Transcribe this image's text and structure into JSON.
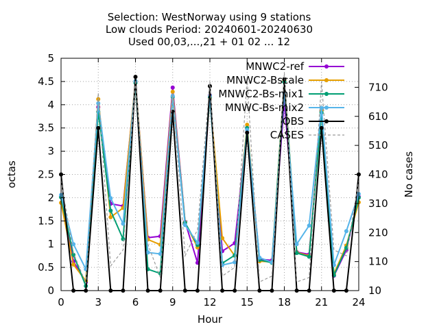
{
  "chart_data": {
    "type": "line",
    "title_lines": [
      "Selection: WestNorway using     9 stations",
      "Low clouds   Period: 20240601-20240630",
      "Used 00,03,...,21 + 01 02 ... 12"
    ],
    "xlabel": "Hour",
    "ylabel": "octas",
    "y2label": "No cases",
    "xlim": [
      0,
      24
    ],
    "ylim": [
      0,
      5
    ],
    "y2lim": [
      10,
      810
    ],
    "xticks": [
      0,
      3,
      6,
      9,
      12,
      15,
      18,
      21,
      24
    ],
    "yticks": [
      0,
      0.5,
      1,
      1.5,
      2,
      2.5,
      3,
      3.5,
      4,
      4.5,
      5
    ],
    "y2ticks": [
      10,
      110,
      210,
      310,
      410,
      510,
      610,
      710
    ],
    "grid": true,
    "legend_position": "top-right",
    "x": [
      0,
      1,
      2,
      3,
      4,
      5,
      6,
      7,
      8,
      9,
      10,
      11,
      12,
      13,
      14,
      15,
      16,
      17,
      18,
      19,
      20,
      21,
      22,
      23,
      24
    ],
    "series": [
      {
        "name": "MNWC2-ref",
        "color": "#9400d3",
        "marker": "circle",
        "values": [
          2.02,
          0.63,
          0.18,
          3.95,
          1.87,
          1.82,
          4.49,
          1.14,
          1.17,
          4.37,
          1.48,
          0.6,
          4.2,
          0.85,
          1.02,
          3.5,
          0.68,
          0.65,
          4.07,
          0.83,
          0.78,
          3.88,
          0.32,
          0.87,
          2.02
        ]
      },
      {
        "name": "MNWC2-Bscale",
        "color": "#e69f00",
        "marker": "circle",
        "values": [
          1.89,
          0.56,
          0.21,
          4.12,
          1.58,
          1.78,
          4.51,
          1.1,
          0.99,
          4.28,
          1.47,
          0.93,
          4.15,
          1.13,
          0.75,
          3.57,
          0.63,
          0.62,
          4.52,
          0.82,
          0.75,
          3.87,
          0.36,
          0.97,
          1.9
        ]
      },
      {
        "name": "MNWC2-Bs-mix1",
        "color": "#009e73",
        "marker": "circle",
        "values": [
          2.01,
          0.77,
          0.1,
          3.85,
          1.72,
          1.11,
          4.47,
          0.46,
          0.37,
          4.17,
          1.46,
          0.98,
          4.16,
          0.59,
          0.76,
          3.5,
          0.66,
          0.6,
          4.49,
          0.81,
          0.73,
          3.83,
          0.33,
          0.92,
          2.0
        ]
      },
      {
        "name": "MNWC-Bs-mix2",
        "color": "#56b4e9",
        "marker": "circle",
        "values": [
          2.06,
          1.0,
          0.46,
          4.03,
          1.99,
          1.44,
          4.51,
          0.82,
          0.79,
          4.19,
          1.41,
          1.03,
          4.19,
          0.55,
          0.61,
          3.46,
          0.71,
          0.61,
          4.26,
          1.0,
          1.4,
          3.93,
          0.55,
          1.28,
          2.08
        ]
      },
      {
        "name": "OBS",
        "color": "#000000",
        "marker": "circle",
        "values": [
          2.5,
          0,
          0,
          3.5,
          0,
          0,
          4.6,
          0,
          0,
          3.85,
          0,
          0,
          4.4,
          0,
          0,
          3.4,
          0,
          0,
          4.55,
          0,
          0,
          3.5,
          0,
          0,
          2.5
        ]
      },
      {
        "name": "CASES",
        "color": "#999999",
        "dashed": true,
        "values": [
          390,
          140,
          35,
          690,
          95,
          150,
          735,
          170,
          55,
          690,
          130,
          220,
          730,
          60,
          90,
          740,
          40,
          60,
          760,
          40,
          55,
          730,
          150,
          130,
          390
        ]
      }
    ]
  }
}
